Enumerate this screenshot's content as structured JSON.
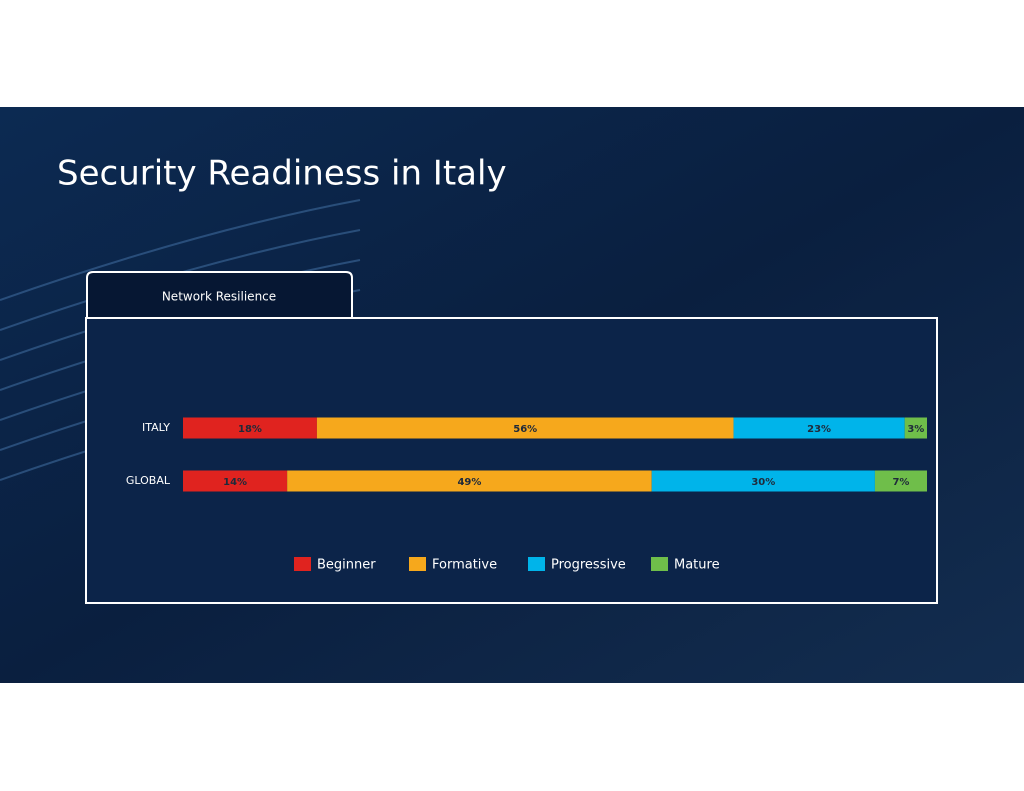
{
  "chart_data": {
    "type": "stacked-bar",
    "orientation": "horizontal",
    "title": "Security Readiness in Italy",
    "subtitle": "Network Resilience",
    "categories": [
      "ITALY",
      "GLOBAL"
    ],
    "series": [
      {
        "name": "Beginner",
        "color": "#e0231f",
        "values": [
          18,
          14
        ],
        "value_labels": [
          "18%",
          "14%"
        ]
      },
      {
        "name": "Formative",
        "color": "#f6a81c",
        "values": [
          56,
          49
        ],
        "value_labels": [
          "56%",
          "49%"
        ]
      },
      {
        "name": "Progressive",
        "color": "#00b4ea",
        "values": [
          23,
          30
        ],
        "value_labels": [
          "23%",
          "30%"
        ]
      },
      {
        "name": "Mature",
        "color": "#6fbe4a",
        "values": [
          3,
          7
        ],
        "value_labels": [
          "3%",
          "7%"
        ]
      }
    ]
  }
}
